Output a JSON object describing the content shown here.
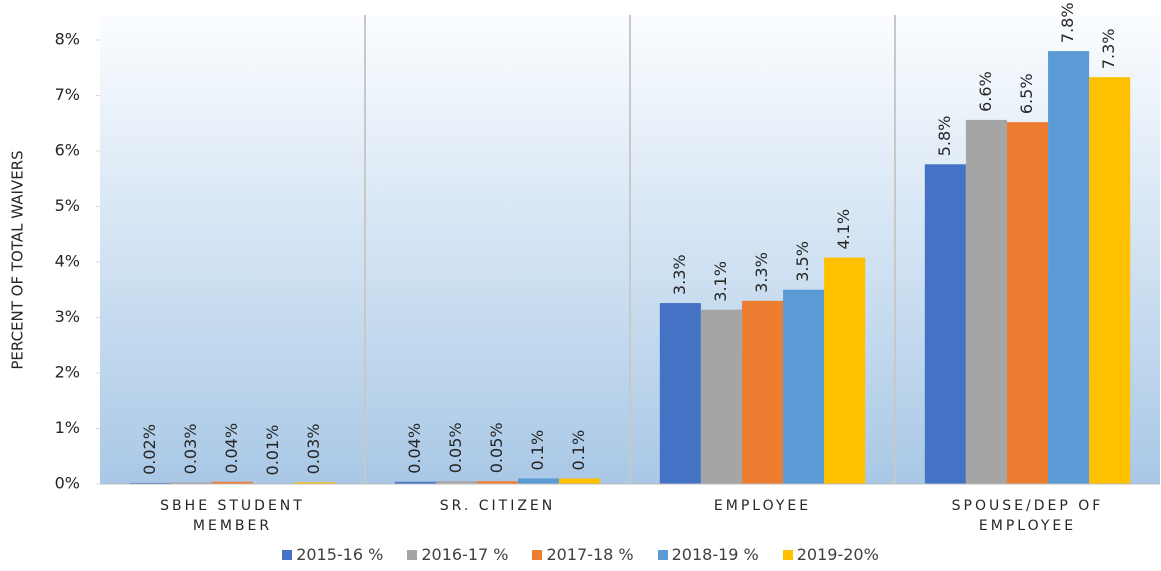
{
  "chart_data": {
    "type": "bar",
    "y_label": "PERCENT OF TOTAL WAIVERS",
    "categories": [
      "SBHE STUDENT MEMBER",
      "SR. CITIZEN",
      "EMPLOYEE",
      "SPOUSE/DEP OF EMPLOYEE"
    ],
    "series": [
      {
        "name": "2015-16 %",
        "color": "#4472c4",
        "values": [
          0.02,
          0.04,
          3.26,
          5.76
        ],
        "value_labels": [
          "0.02%",
          "0.04%",
          "3.3%",
          "5.8%"
        ]
      },
      {
        "name": "2016-17 %",
        "color": "#a5a5a5",
        "values": [
          0.03,
          0.05,
          3.14,
          6.56
        ],
        "value_labels": [
          "0.03%",
          "0.05%",
          "3.1%",
          "6.6%"
        ]
      },
      {
        "name": "2017-18 %",
        "color": "#ed7d31",
        "values": [
          0.04,
          0.05,
          3.3,
          6.52
        ],
        "value_labels": [
          "0.04%",
          "0.05%",
          "3.3%",
          "6.5%"
        ]
      },
      {
        "name": "2018-19 %",
        "color": "#5b9bd5",
        "values": [
          0.01,
          0.1,
          3.5,
          7.8
        ],
        "value_labels": [
          "0.01%",
          "0.1%",
          "3.5%",
          "7.8%"
        ]
      },
      {
        "name": "2019-20%",
        "color": "#ffc000",
        "values": [
          0.03,
          0.1,
          4.08,
          7.33
        ],
        "value_labels": [
          "0.03%",
          "0.1%",
          "4.1%",
          "7.3%"
        ]
      }
    ],
    "ylim": [
      0,
      8.45
    ],
    "yticks": [
      {
        "value": 0,
        "label": "0%"
      },
      {
        "value": 1,
        "label": "1%"
      },
      {
        "value": 2,
        "label": "2%"
      },
      {
        "value": 3,
        "label": "3%"
      },
      {
        "value": 4,
        "label": "4%"
      },
      {
        "value": 5,
        "label": "5%"
      },
      {
        "value": 6,
        "label": "6%"
      },
      {
        "value": 7,
        "label": "7%"
      },
      {
        "value": 8,
        "label": "8%"
      }
    ],
    "grid": false,
    "legend": "bottom"
  }
}
